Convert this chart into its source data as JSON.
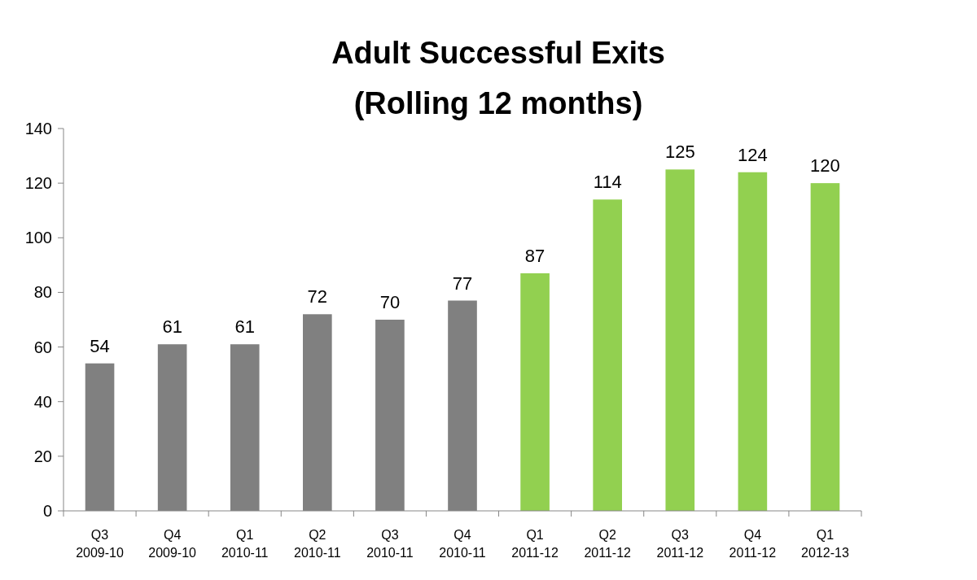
{
  "chart_data": {
    "type": "bar",
    "title": "Adult Successful Exits\n(Rolling 12 months)",
    "categories": [
      "Q3 2009-10",
      "Q4 2009-10",
      "Q1 2010-11",
      "Q2 2010-11",
      "Q3 2010-11",
      "Q4 2010-11",
      "Q1 2011-12",
      "Q2 2011-12",
      "Q3 2011-12",
      "Q4 2011-12",
      "Q1 2012-13"
    ],
    "values": [
      54,
      61,
      61,
      72,
      70,
      77,
      87,
      114,
      125,
      124,
      120
    ],
    "colors": [
      "#808080",
      "#808080",
      "#808080",
      "#808080",
      "#808080",
      "#808080",
      "#92d050",
      "#92d050",
      "#92d050",
      "#92d050",
      "#92d050"
    ],
    "ylim": [
      0,
      140
    ],
    "yticks": [
      0,
      20,
      40,
      60,
      80,
      100,
      120,
      140
    ],
    "data_labels": true
  }
}
